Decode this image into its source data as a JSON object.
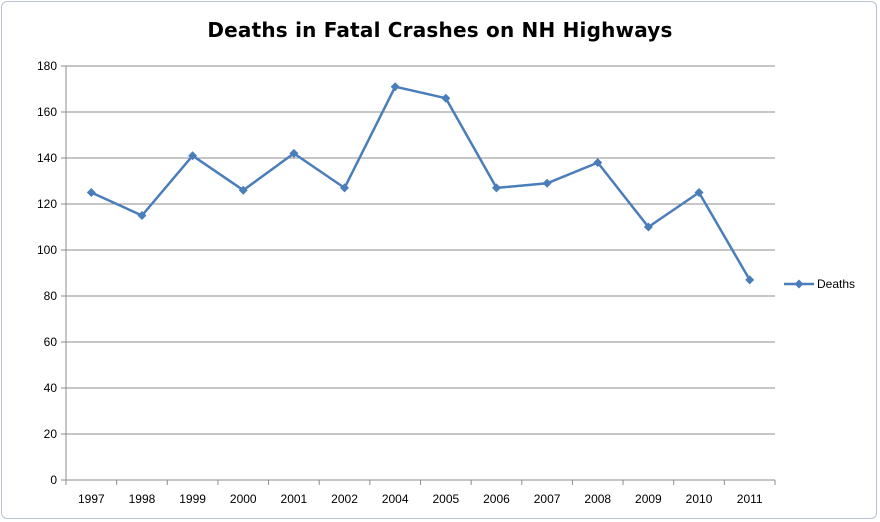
{
  "chart_data": {
    "type": "line",
    "title": "Deaths in Fatal Crashes on NH Highways",
    "xlabel": "",
    "ylabel": "",
    "categories": [
      "1997",
      "1998",
      "1999",
      "2000",
      "2001",
      "2002",
      "2004",
      "2005",
      "2006",
      "2007",
      "2008",
      "2009",
      "2010",
      "2011"
    ],
    "series": [
      {
        "name": "Deaths",
        "values": [
          125,
          115,
          141,
          126,
          142,
          127,
          171,
          166,
          127,
          129,
          138,
          110,
          125,
          87
        ],
        "color": "#4a7ebb",
        "marker": "diamond"
      }
    ],
    "ylim": [
      0,
      180
    ],
    "yticks": [
      0,
      20,
      40,
      60,
      80,
      100,
      120,
      140,
      160,
      180
    ],
    "grid": "horizontal",
    "legend_position": "right"
  }
}
